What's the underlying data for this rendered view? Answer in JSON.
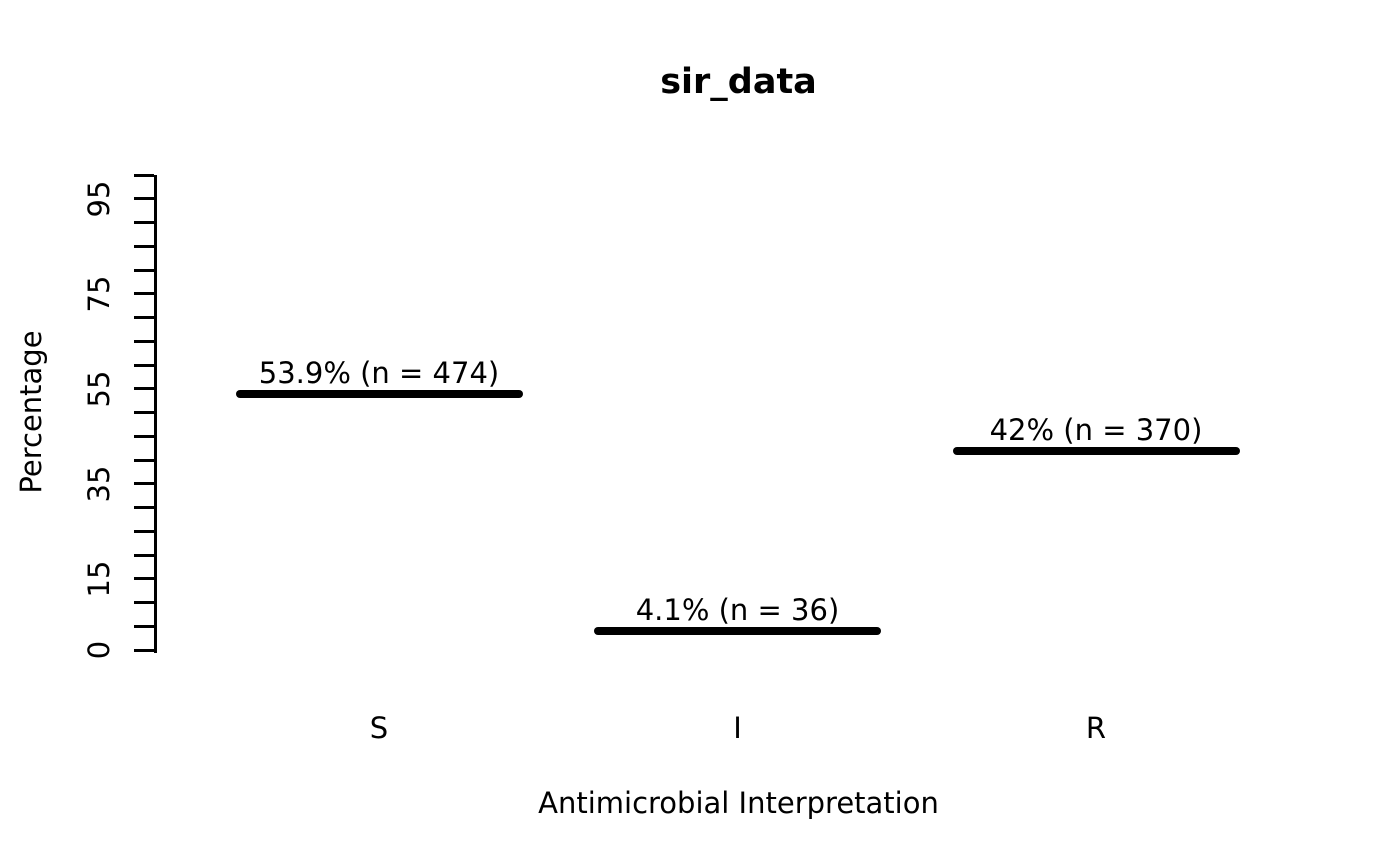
{
  "colors": {
    "foreground": "#000000",
    "background": "#FFFFFF",
    "bar": "#000000"
  },
  "chart_data": {
    "type": "bar",
    "style": "horizontal-dash-marker-plot",
    "title": "sir_data",
    "xlabel": "Antimicrobial Interpretation",
    "ylabel": "Percentage",
    "categories": [
      "S",
      "I",
      "R"
    ],
    "values": [
      53.9,
      4.1,
      42
    ],
    "counts": [
      474,
      36,
      370
    ],
    "point_labels": [
      "53.9% (n = 474)",
      "4.1% (n = 36)",
      "42% (n = 370)"
    ],
    "ylim": [
      0,
      100
    ],
    "y_tick_step": 5,
    "y_labeled_ticks": [
      0,
      15,
      35,
      55,
      75,
      95
    ],
    "y_tick_label_texts": [
      "0",
      "15",
      "35",
      "55",
      "75",
      "95"
    ],
    "grid": false,
    "legend": null,
    "box": false
  }
}
